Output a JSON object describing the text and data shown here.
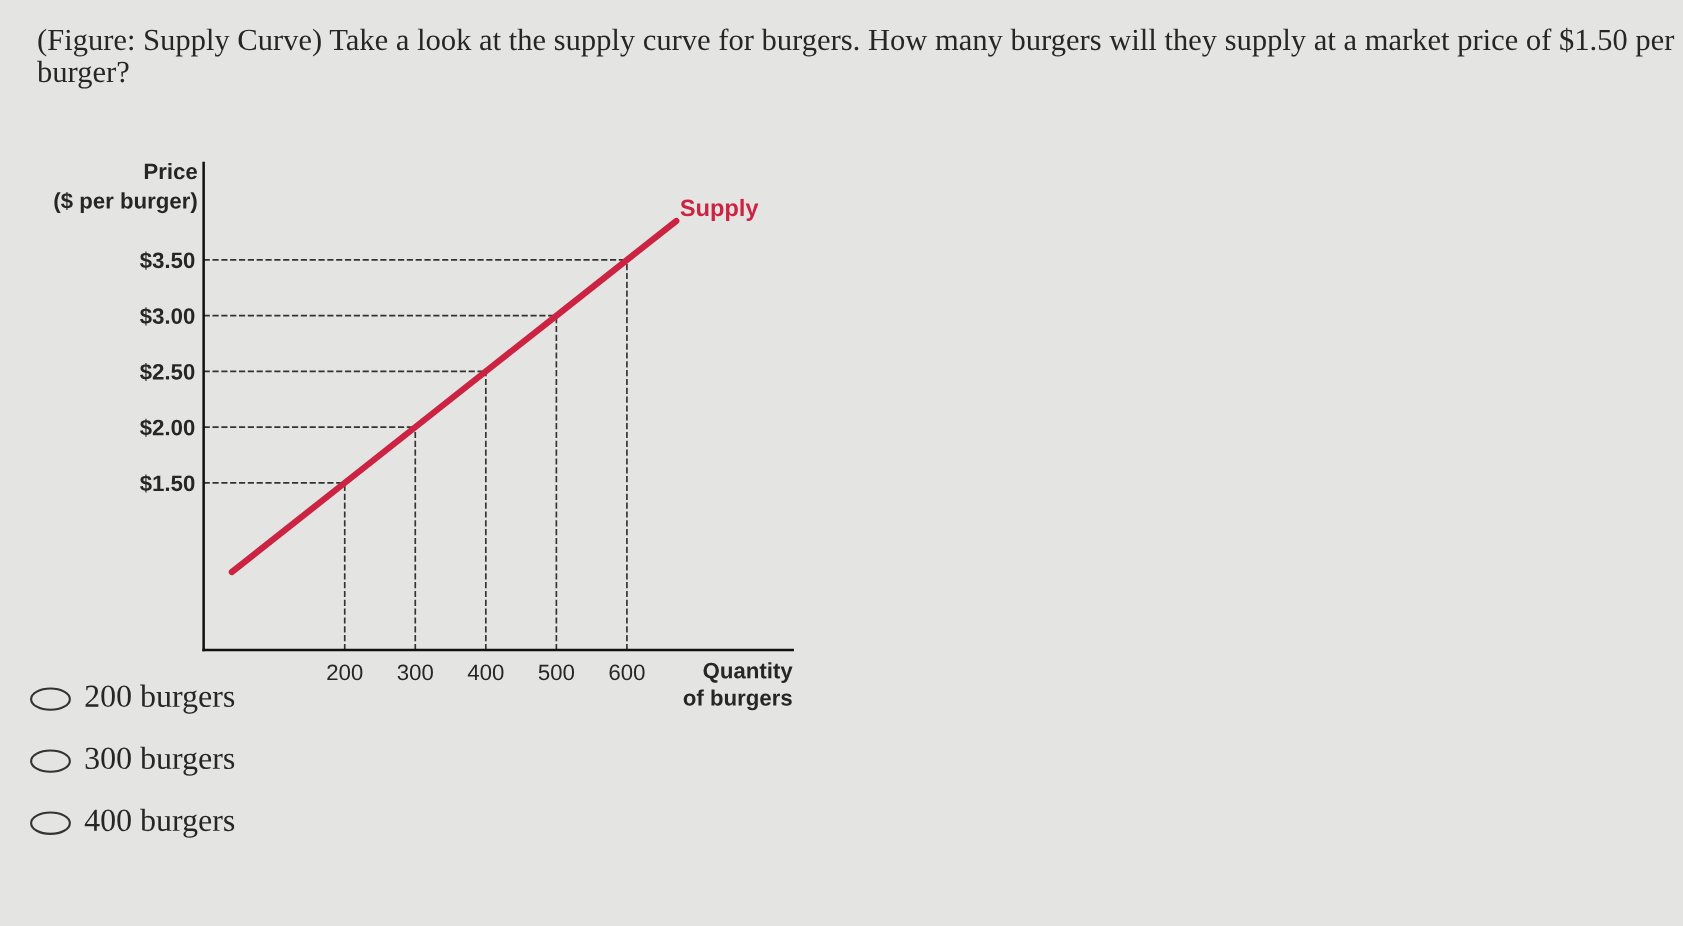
{
  "chart_data": {
    "type": "line",
    "title": "(Figure: Supply Curve) Take a look at the supply curve for burgers. How many burgers will they supply at a market price of $1.50 per burger?",
    "xlabel": "Quantity\nof burgers",
    "ylabel": "Price\n($ per burger)",
    "x": [
      40,
      200,
      300,
      400,
      500,
      600,
      670
    ],
    "series": [
      {
        "name": "Supply",
        "color": "#cc2342",
        "values": [
          0.7,
          1.5,
          2.0,
          2.5,
          3.0,
          3.5,
          3.85
        ]
      }
    ],
    "xlim": [
      0,
      835
    ],
    "ylim": [
      0,
      4.37
    ],
    "xticks": [
      200,
      300,
      400,
      500,
      600
    ],
    "yticks": [
      {
        "value": 1.5,
        "label": "$1.50"
      },
      {
        "value": 2.0,
        "label": "$2.00"
      },
      {
        "value": 2.5,
        "label": "$2.50"
      },
      {
        "value": 3.0,
        "label": "$3.00"
      },
      {
        "value": 3.5,
        "label": "$3.50"
      }
    ],
    "ref_lines": [
      {
        "axis": "y",
        "value": 1.5,
        "color": "#333333",
        "line_style": "dashed"
      },
      {
        "axis": "y",
        "value": 2.0,
        "color": "#333333",
        "line_style": "dashed"
      },
      {
        "axis": "y",
        "value": 2.5,
        "color": "#333333",
        "line_style": "dashed"
      },
      {
        "axis": "y",
        "value": 3.0,
        "color": "#333333",
        "line_style": "dashed"
      },
      {
        "axis": "y",
        "value": 3.5,
        "color": "#333333",
        "line_style": "dashed"
      },
      {
        "axis": "x",
        "value": 200,
        "color": "#333333",
        "line_style": "dashed"
      },
      {
        "axis": "x",
        "value": 300,
        "color": "#333333",
        "line_style": "dashed"
      },
      {
        "axis": "x",
        "value": 400,
        "color": "#333333",
        "line_style": "dashed"
      },
      {
        "axis": "x",
        "value": 500,
        "color": "#333333",
        "line_style": "dashed"
      },
      {
        "axis": "x",
        "value": 600,
        "color": "#333333",
        "line_style": "dashed"
      }
    ],
    "annotations": [
      "200 burgers",
      "300 burgers",
      "400 burgers"
    ],
    "grid": false,
    "legend": false,
    "marker": "none",
    "line_style": "solid"
  }
}
